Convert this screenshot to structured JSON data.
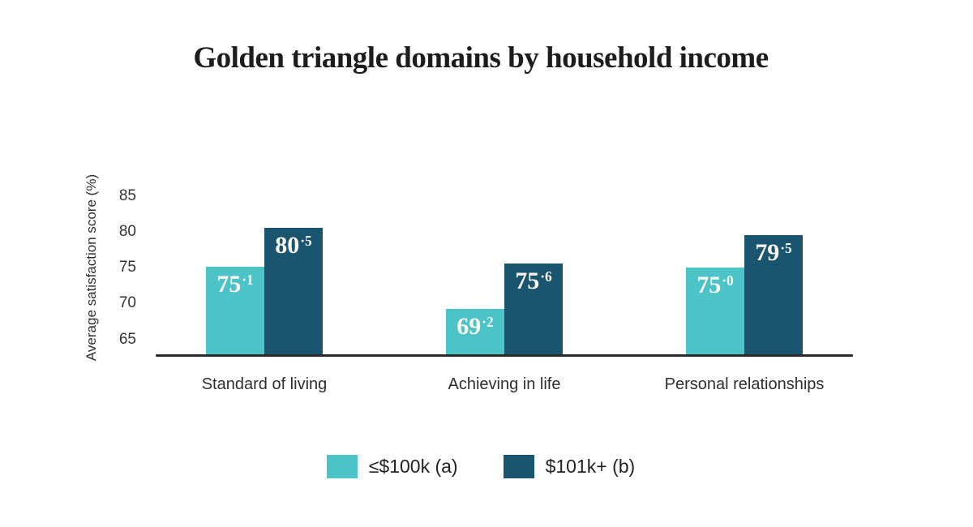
{
  "title": "Golden triangle domains by household income",
  "colors": {
    "series_a": "#4CC3C7",
    "series_b": "#1A5570",
    "axis_line": "#2b2b2b",
    "bar_label_text": "#FBF7EC",
    "tick_text": "#333333",
    "title_text": "#1d1d1d"
  },
  "chart_data": {
    "type": "bar",
    "title": "Golden triangle domains by household income",
    "xlabel": "",
    "ylabel": "Average satisfaction score (%)",
    "categories": [
      "Standard of living",
      "Achieving in life",
      "Personal relationships"
    ],
    "series": [
      {
        "name": "≤$100k (a)",
        "color": "#4CC3C7",
        "values": [
          75.1,
          69.2,
          75.0
        ]
      },
      {
        "name": "$101k+ (b)",
        "color": "#1A5570",
        "values": [
          80.5,
          75.6,
          79.5
        ]
      }
    ],
    "yticks": [
      65,
      70,
      75,
      80,
      85
    ],
    "ylim": [
      62.8,
      87
    ],
    "grid": false,
    "legend_position": "bottom",
    "value_label_format": "superscript-decimal"
  }
}
